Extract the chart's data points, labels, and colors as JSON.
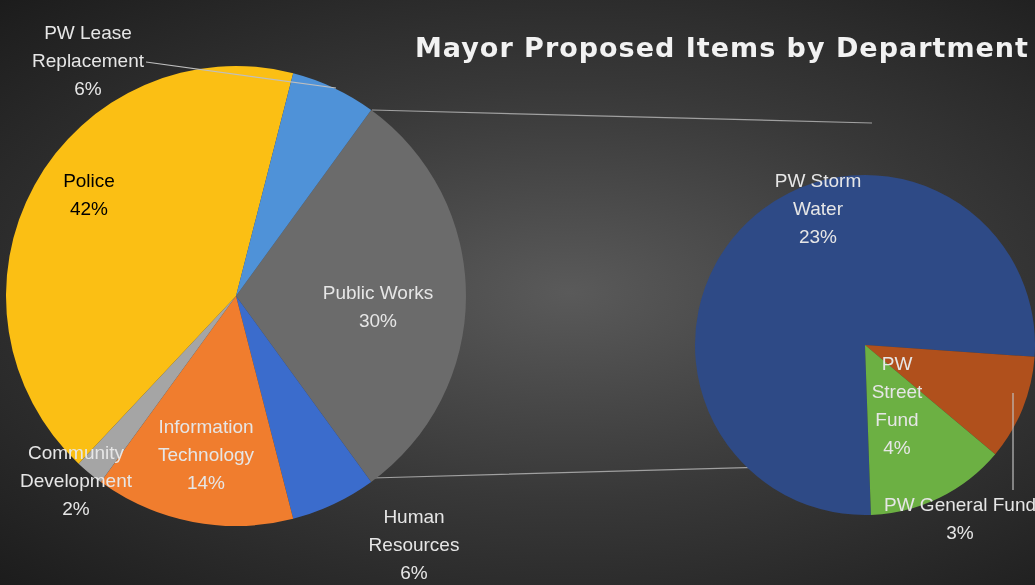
{
  "chart_data": [
    {
      "type": "pie",
      "title": "Mayor Proposed Items by Department",
      "categories": [
        "Public Works",
        "Human Resources",
        "Information Technology",
        "Community Development",
        "Police",
        "PW Lease Replacement"
      ],
      "values": [
        30,
        6,
        14,
        2,
        42,
        6
      ],
      "colors": [
        "#6b6b6b",
        "#3b6ccc",
        "#f07d2e",
        "#a5a5a5",
        "#fbbf14",
        "#4f92d8"
      ],
      "value_labels": [
        "30%",
        "6%",
        "14%",
        "2%",
        "42%",
        "6%"
      ]
    },
    {
      "type": "pie",
      "categories": [
        "PW Storm Water",
        "PW General Fund",
        "PW Street Fund"
      ],
      "values": [
        23,
        3,
        4
      ],
      "colors": [
        "#2e4a86",
        "#b0501c",
        "#6cb043"
      ],
      "value_labels": [
        "23%",
        "3%",
        "4%"
      ]
    }
  ]
}
